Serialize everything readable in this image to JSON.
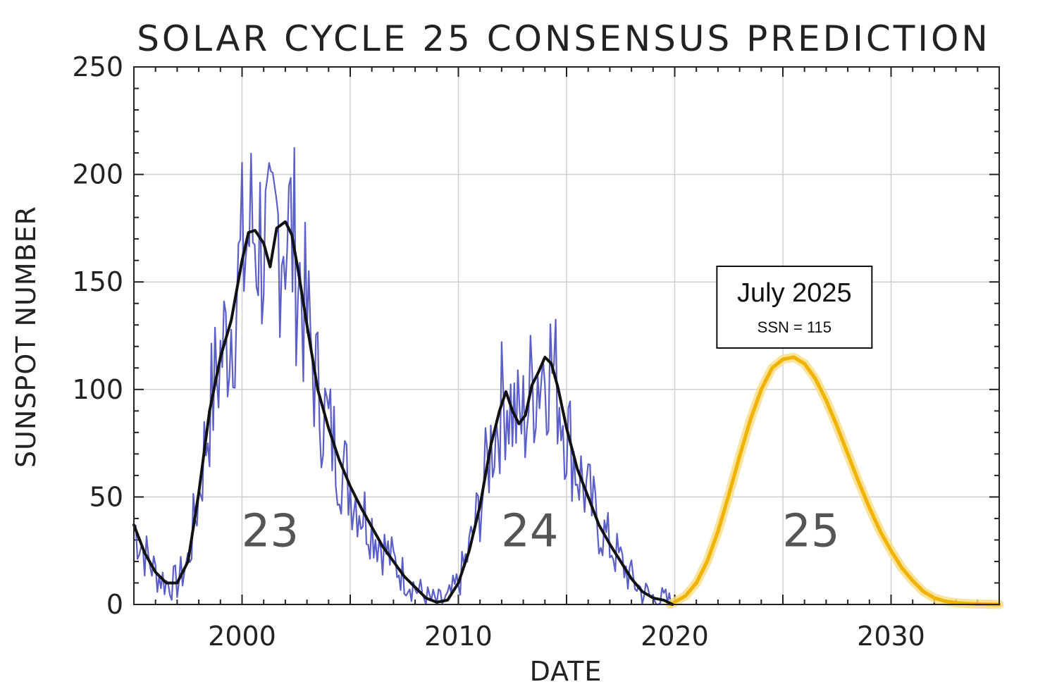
{
  "chart_data": {
    "type": "line",
    "title": "SOLAR CYCLE 25 CONSENSUS PREDICTION",
    "xlabel": "DATE",
    "ylabel": "SUNSPOT NUMBER",
    "xlim": [
      1995,
      2035
    ],
    "ylim": [
      0,
      250
    ],
    "xticks": [
      2000,
      2010,
      2020,
      2030
    ],
    "yticks": [
      0,
      50,
      100,
      150,
      200,
      250
    ],
    "grid": true,
    "colors": {
      "monthly": "#5b5fc7",
      "smoothed": "#111111",
      "prediction": "#f0b400"
    },
    "cycle_labels": [
      {
        "text": "23",
        "x": 2001.3,
        "y": 27
      },
      {
        "text": "24",
        "x": 2013.3,
        "y": 27
      },
      {
        "text": "25",
        "x": 2026.3,
        "y": 27
      }
    ],
    "annotation": {
      "title": "July 2025",
      "subtitle": "SSN = 115",
      "x": 2025.5,
      "y": 115
    },
    "series": [
      {
        "style": "smoothed-observed",
        "x": [
          1995.0,
          1995.5,
          1996.0,
          1996.5,
          1997.0,
          1997.5,
          1998.0,
          1998.5,
          1999.0,
          1999.5,
          2000.0,
          2000.3,
          2000.6,
          2001.0,
          2001.3,
          2001.6,
          2002.0,
          2002.3,
          2002.6,
          2003.0,
          2003.5,
          2004.0,
          2004.5,
          2005.0,
          2005.5,
          2006.0,
          2006.5,
          2007.0,
          2007.5,
          2008.0,
          2008.5,
          2009.0,
          2009.5,
          2010.0,
          2010.5,
          2011.0,
          2011.5,
          2011.9,
          2012.2,
          2012.5,
          2012.8,
          2013.1,
          2013.4,
          2013.7,
          2014.0,
          2014.3,
          2014.6,
          2015.0,
          2015.5,
          2016.0,
          2016.5,
          2017.0,
          2017.5,
          2018.0,
          2018.5,
          2019.0,
          2019.5,
          2019.9
        ],
        "y": [
          37,
          24,
          15,
          10,
          10,
          20,
          52,
          90,
          115,
          132,
          160,
          173,
          174,
          168,
          157,
          175,
          178,
          172,
          155,
          130,
          100,
          82,
          67,
          55,
          45,
          36,
          27,
          20,
          13,
          8,
          3,
          1,
          2,
          10,
          25,
          46,
          74,
          90,
          99,
          90,
          84,
          88,
          102,
          108,
          115,
          112,
          101,
          82,
          63,
          50,
          37,
          28,
          20,
          12,
          6,
          3,
          2,
          0
        ]
      },
      {
        "style": "prediction",
        "x": [
          2019.8,
          2020.5,
          2021.0,
          2021.5,
          2022.0,
          2022.5,
          2023.0,
          2023.5,
          2024.0,
          2024.5,
          2025.0,
          2025.5,
          2026.0,
          2026.5,
          2027.0,
          2027.5,
          2028.0,
          2028.5,
          2029.0,
          2029.5,
          2030.0,
          2030.5,
          2031.0,
          2031.5,
          2032.0,
          2032.5,
          2033.0,
          2033.5,
          2034.0,
          2034.5,
          2035.0
        ],
        "y": [
          0,
          4,
          10,
          20,
          34,
          51,
          69,
          86,
          100,
          110,
          114,
          115,
          112,
          105,
          95,
          83,
          70,
          57,
          45,
          34,
          25,
          17,
          11,
          6,
          3,
          1.5,
          0.8,
          0.4,
          0.2,
          0.1,
          0
        ]
      }
    ]
  }
}
